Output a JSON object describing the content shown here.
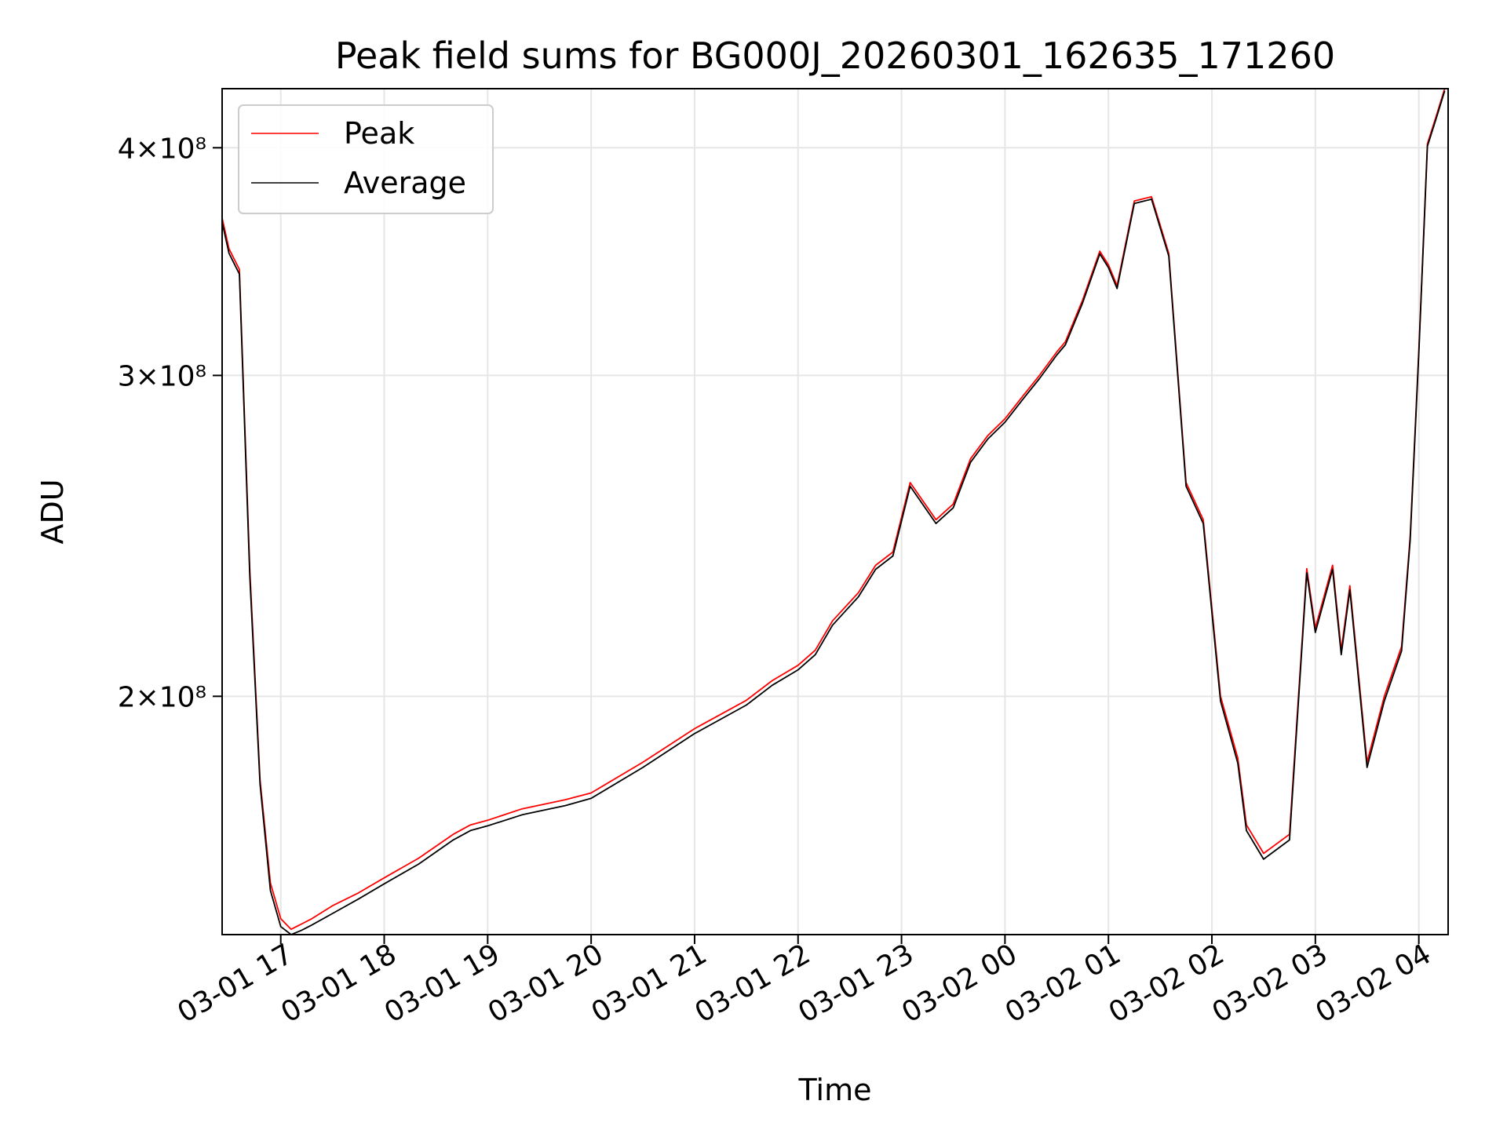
{
  "chart_data": {
    "type": "line",
    "title": "Peak field sums for BG000J_20260301_162635_171260",
    "xlabel": "Time",
    "ylabel": "ADU",
    "y_scale": "log",
    "xlim": [
      "2026-03-01 16:26",
      "2026-03-02 04:17"
    ],
    "ylim": [
      148000000,
      431000000
    ],
    "x_ticks": [
      "03-01 17",
      "03-01 18",
      "03-01 19",
      "03-01 20",
      "03-01 21",
      "03-01 22",
      "03-01 23",
      "03-02 00",
      "03-02 01",
      "03-02 02",
      "03-02 03",
      "03-02 04"
    ],
    "y_ticks": [
      {
        "value": 200000000,
        "label": "2×10⁸"
      },
      {
        "value": 300000000,
        "label": "3×10⁸"
      },
      {
        "value": 400000000,
        "label": "4×10⁸"
      }
    ],
    "grid": true,
    "legend_position": "upper-left",
    "x": [
      "2026-03-01 16:26",
      "2026-03-01 16:30",
      "2026-03-01 16:36",
      "2026-03-01 16:42",
      "2026-03-01 16:48",
      "2026-03-01 16:54",
      "2026-03-01 17:00",
      "2026-03-01 17:06",
      "2026-03-01 17:12",
      "2026-03-01 17:18",
      "2026-03-01 17:30",
      "2026-03-01 17:45",
      "2026-03-01 18:00",
      "2026-03-01 18:20",
      "2026-03-01 18:40",
      "2026-03-01 18:50",
      "2026-03-01 19:00",
      "2026-03-01 19:20",
      "2026-03-01 19:45",
      "2026-03-01 20:00",
      "2026-03-01 20:30",
      "2026-03-01 21:00",
      "2026-03-01 21:30",
      "2026-03-01 21:45",
      "2026-03-01 22:00",
      "2026-03-01 22:10",
      "2026-03-01 22:20",
      "2026-03-01 22:35",
      "2026-03-01 22:45",
      "2026-03-01 22:55",
      "2026-03-01 23:05",
      "2026-03-01 23:20",
      "2026-03-01 23:30",
      "2026-03-01 23:40",
      "2026-03-01 23:50",
      "2026-03-02 00:00",
      "2026-03-02 00:10",
      "2026-03-02 00:20",
      "2026-03-02 00:30",
      "2026-03-02 00:35",
      "2026-03-02 00:45",
      "2026-03-02 00:55",
      "2026-03-02 01:00",
      "2026-03-02 01:05",
      "2026-03-02 01:15",
      "2026-03-02 01:25",
      "2026-03-02 01:35",
      "2026-03-02 01:45",
      "2026-03-02 01:55",
      "2026-03-02 02:05",
      "2026-03-02 02:15",
      "2026-03-02 02:20",
      "2026-03-02 02:30",
      "2026-03-02 02:45",
      "2026-03-02 02:55",
      "2026-03-02 03:00",
      "2026-03-02 03:10",
      "2026-03-02 03:15",
      "2026-03-02 03:20",
      "2026-03-02 03:30",
      "2026-03-02 03:40",
      "2026-03-02 03:50",
      "2026-03-02 03:55",
      "2026-03-02 04:00",
      "2026-03-02 04:05",
      "2026-03-02 04:10",
      "2026-03-02 04:15"
    ],
    "series": [
      {
        "name": "Peak",
        "color": "#ff0000",
        "values": [
          366000000,
          352000000,
          343000000,
          235000000,
          180000000,
          158000000,
          151000000,
          149000000,
          150000000,
          151000000,
          153500000,
          156000000,
          159000000,
          163000000,
          168000000,
          170000000,
          171000000,
          173500000,
          175500000,
          177000000,
          184000000,
          192000000,
          199000000,
          204000000,
          208000000,
          212000000,
          220000000,
          228000000,
          236000000,
          240000000,
          262000000,
          250000000,
          255000000,
          270000000,
          278000000,
          284000000,
          292000000,
          300000000,
          309000000,
          313000000,
          330000000,
          351000000,
          345000000,
          336000000,
          374000000,
          376000000,
          350000000,
          262000000,
          250000000,
          200000000,
          185000000,
          170000000,
          164000000,
          168000000,
          235000000,
          218000000,
          236000000,
          212000000,
          230000000,
          184000000,
          200000000,
          213000000,
          245000000,
          310000000,
          402000000,
          416000000,
          431000000
        ]
      },
      {
        "name": "Average",
        "color": "#000000",
        "values": [
          364000000,
          350000000,
          341000000,
          233000000,
          179000000,
          156500000,
          149500000,
          148000000,
          148800000,
          149800000,
          152000000,
          154800000,
          157800000,
          161800000,
          166800000,
          168800000,
          169800000,
          172200000,
          174200000,
          175800000,
          182800000,
          190800000,
          197800000,
          202800000,
          206800000,
          210800000,
          218800000,
          226800000,
          234800000,
          238800000,
          260800000,
          248800000,
          253800000,
          268800000,
          276800000,
          282800000,
          290800000,
          298800000,
          307800000,
          311800000,
          328800000,
          349800000,
          343800000,
          334800000,
          372800000,
          374800000,
          348800000,
          260800000,
          248800000,
          198800000,
          183800000,
          168800000,
          162800000,
          166800000,
          233800000,
          216800000,
          234800000,
          210800000,
          228800000,
          182800000,
          198800000,
          211800000,
          243800000,
          308800000,
          400800000,
          414800000,
          429800000
        ]
      }
    ]
  }
}
